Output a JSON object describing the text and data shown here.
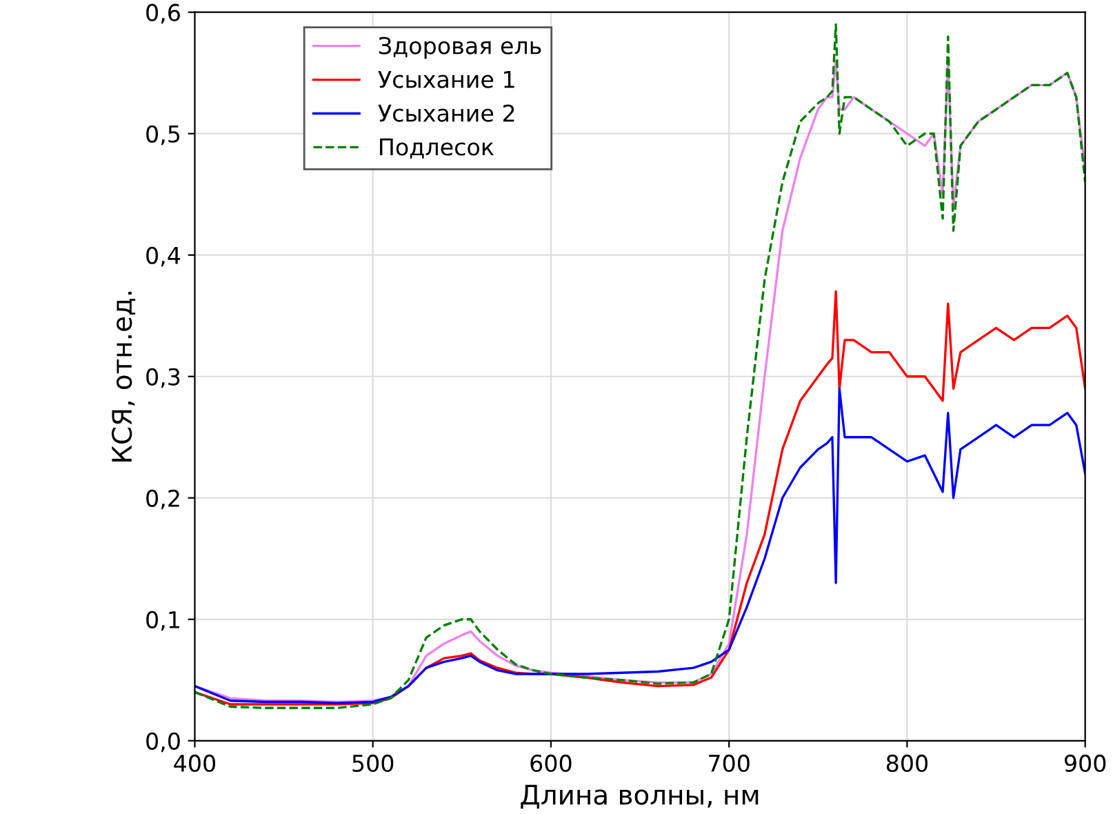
{
  "chart_data": {
    "type": "line",
    "xlabel": "Длина волны, нм",
    "ylabel": "КСЯ, отн.ед.",
    "x": [
      400,
      420,
      440,
      460,
      480,
      500,
      510,
      520,
      530,
      540,
      550,
      555,
      560,
      570,
      580,
      590,
      600,
      620,
      640,
      660,
      680,
      690,
      700,
      710,
      720,
      730,
      740,
      750,
      755,
      758,
      760,
      762,
      765,
      770,
      780,
      790,
      800,
      810,
      815,
      820,
      823,
      826,
      830,
      840,
      850,
      860,
      870,
      880,
      890,
      895,
      900
    ],
    "series": [
      {
        "name": "Здоровая ель",
        "color": "#ee82ee",
        "line_style": "solid",
        "values": [
          0.045,
          0.035,
          0.033,
          0.033,
          0.032,
          0.033,
          0.036,
          0.045,
          0.07,
          0.08,
          0.087,
          0.09,
          0.082,
          0.07,
          0.062,
          0.058,
          0.056,
          0.053,
          0.05,
          0.048,
          0.048,
          0.055,
          0.08,
          0.17,
          0.3,
          0.42,
          0.48,
          0.52,
          0.53,
          0.53,
          0.56,
          0.52,
          0.52,
          0.53,
          0.52,
          0.51,
          0.5,
          0.49,
          0.5,
          0.45,
          0.56,
          0.44,
          0.49,
          0.51,
          0.52,
          0.53,
          0.54,
          0.54,
          0.55,
          0.53,
          0.47
        ]
      },
      {
        "name": "Усыхание 1",
        "color": "#ff0000",
        "line_style": "solid",
        "values": [
          0.04,
          0.03,
          0.03,
          0.03,
          0.03,
          0.031,
          0.035,
          0.045,
          0.06,
          0.068,
          0.07,
          0.072,
          0.066,
          0.06,
          0.056,
          0.055,
          0.055,
          0.052,
          0.048,
          0.045,
          0.046,
          0.052,
          0.075,
          0.13,
          0.17,
          0.24,
          0.28,
          0.3,
          0.31,
          0.315,
          0.37,
          0.29,
          0.33,
          0.33,
          0.32,
          0.32,
          0.3,
          0.3,
          0.29,
          0.28,
          0.36,
          0.29,
          0.32,
          0.33,
          0.34,
          0.33,
          0.34,
          0.34,
          0.35,
          0.34,
          0.29
        ]
      },
      {
        "name": "Усыхание 2",
        "color": "#0000ff",
        "line_style": "solid",
        "values": [
          0.045,
          0.033,
          0.032,
          0.032,
          0.031,
          0.032,
          0.036,
          0.045,
          0.06,
          0.065,
          0.068,
          0.07,
          0.065,
          0.058,
          0.055,
          0.055,
          0.055,
          0.055,
          0.056,
          0.057,
          0.06,
          0.065,
          0.075,
          0.11,
          0.15,
          0.2,
          0.225,
          0.24,
          0.245,
          0.25,
          0.13,
          0.29,
          0.25,
          0.25,
          0.25,
          0.24,
          0.23,
          0.235,
          0.22,
          0.205,
          0.27,
          0.2,
          0.24,
          0.25,
          0.26,
          0.25,
          0.26,
          0.26,
          0.27,
          0.26,
          0.22
        ]
      },
      {
        "name": "Подлесок",
        "color": "#008000",
        "line_style": "dashed",
        "values": [
          0.04,
          0.028,
          0.027,
          0.027,
          0.027,
          0.03,
          0.035,
          0.05,
          0.085,
          0.095,
          0.1,
          0.1,
          0.09,
          0.075,
          0.063,
          0.058,
          0.055,
          0.052,
          0.05,
          0.047,
          0.048,
          0.055,
          0.1,
          0.25,
          0.38,
          0.46,
          0.51,
          0.525,
          0.53,
          0.535,
          0.59,
          0.5,
          0.53,
          0.53,
          0.52,
          0.51,
          0.49,
          0.5,
          0.5,
          0.43,
          0.58,
          0.42,
          0.49,
          0.51,
          0.52,
          0.53,
          0.54,
          0.54,
          0.55,
          0.53,
          0.46
        ]
      }
    ],
    "xlim": [
      400,
      900
    ],
    "xticks": [
      400,
      500,
      600,
      700,
      800,
      900
    ],
    "ylim": [
      0,
      0.6
    ],
    "yticks": [
      {
        "value": 0,
        "label": "0,0"
      },
      {
        "value": 0.1,
        "label": "0,1"
      },
      {
        "value": 0.2,
        "label": "0,2"
      },
      {
        "value": 0.3,
        "label": "0,3"
      },
      {
        "value": 0.4,
        "label": "0,4"
      },
      {
        "value": 0.5,
        "label": "0,5"
      },
      {
        "value": 0.6,
        "label": "0,6"
      }
    ],
    "grid": true,
    "legend": "top left",
    "marker": "none"
  }
}
